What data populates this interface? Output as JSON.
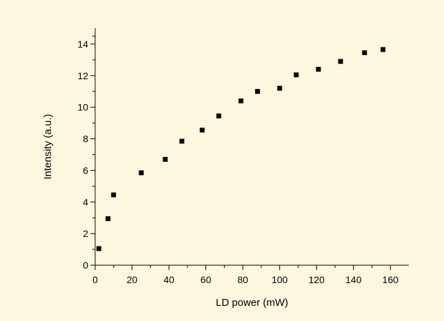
{
  "chart_data": {
    "type": "scatter",
    "title": "",
    "xlabel": "LD power (mW)",
    "ylabel": "Intensity (a.u.)",
    "xlim": [
      0,
      170
    ],
    "ylim": [
      0,
      15
    ],
    "x_ticks": [
      0,
      20,
      40,
      60,
      80,
      100,
      120,
      140,
      160
    ],
    "y_ticks": [
      0,
      2,
      4,
      6,
      8,
      10,
      12,
      14
    ],
    "grid": false,
    "legend": "none",
    "marker": "square",
    "marker_color": "#000000",
    "background_color": "#fdf7df",
    "series": [
      {
        "x": [
          2,
          7,
          10,
          25,
          38,
          47,
          58,
          67,
          79,
          88,
          100,
          109,
          121,
          133,
          146,
          156
        ],
        "y": [
          1.05,
          2.95,
          4.45,
          5.85,
          6.7,
          7.85,
          8.55,
          9.45,
          10.4,
          11.0,
          11.2,
          12.05,
          12.4,
          12.9,
          13.45,
          13.65
        ]
      }
    ]
  }
}
